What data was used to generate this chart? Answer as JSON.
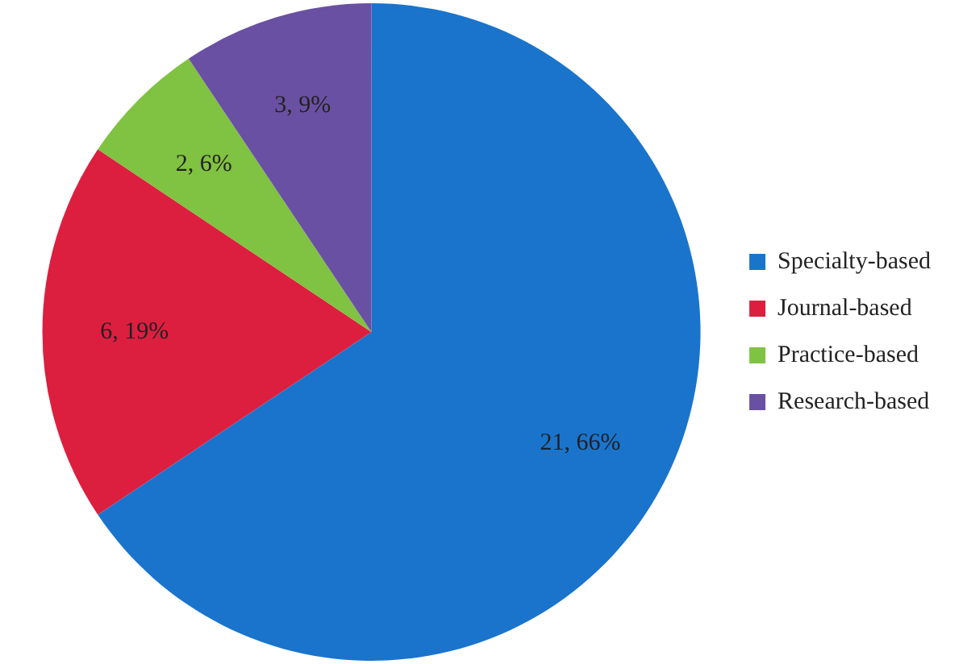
{
  "chart_data": {
    "type": "pie",
    "categories": [
      "Specialty-based",
      "Journal-based",
      "Practice-based",
      "Research-based"
    ],
    "values": [
      21,
      6,
      2,
      3
    ],
    "colors": [
      "#1a74cc",
      "#dc1f3f",
      "#80c241",
      "#6a50a2"
    ],
    "value_labels": [
      "21, 66%",
      "6, 19%",
      "2, 6%",
      "3, 9%"
    ],
    "legend": "right"
  }
}
